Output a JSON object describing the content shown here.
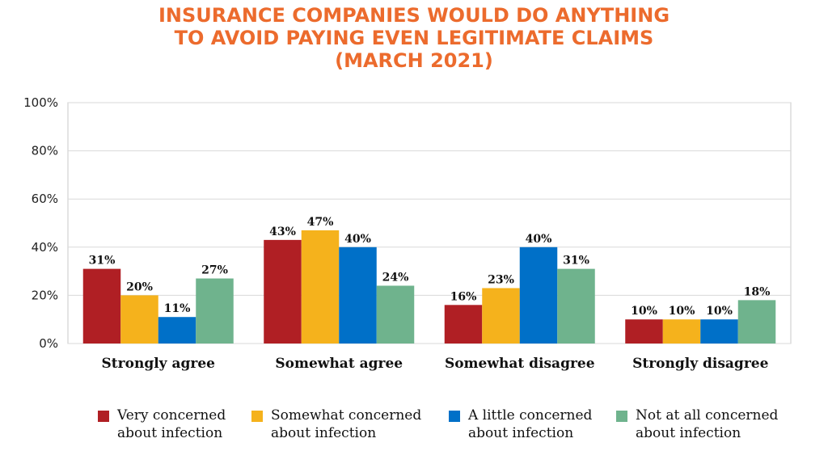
{
  "title_lines": [
    "INSURANCE COMPANIES WOULD DO ANYTHING",
    "TO AVOID PAYING EVEN LEGITIMATE CLAIMS",
    "(MARCH 2021)"
  ],
  "legend": [
    {
      "line1": "Very concerned",
      "line2": "about infection"
    },
    {
      "line1": "Somewhat concerned",
      "line2": "about infection"
    },
    {
      "line1": "A little concerned",
      "line2": "about infection"
    },
    {
      "line1": "Not at all concerned",
      "line2": "about infection"
    }
  ],
  "chart_data": {
    "type": "bar",
    "title": "INSURANCE COMPANIES WOULD DO ANYTHING TO AVOID PAYING EVEN LEGITIMATE CLAIMS (MARCH 2021)",
    "categories": [
      "Strongly agree",
      "Somewhat agree",
      "Somewhat disagree",
      "Strongly disagree"
    ],
    "series": [
      {
        "name": "Very concerned about infection",
        "color": "#b01f24",
        "values": [
          31,
          43,
          16,
          10
        ]
      },
      {
        "name": "Somewhat concerned about infection",
        "color": "#f5b21c",
        "values": [
          20,
          47,
          23,
          10
        ]
      },
      {
        "name": "A little concerned about infection",
        "color": "#0070c8",
        "values": [
          11,
          40,
          40,
          10
        ]
      },
      {
        "name": "Not at all concerned about infection",
        "color": "#6fb38d",
        "values": [
          27,
          24,
          31,
          18
        ]
      }
    ],
    "data_labels": [
      [
        "31%",
        "43%",
        "16%",
        "10%"
      ],
      [
        "20%",
        "47%",
        "23%",
        "10%"
      ],
      [
        "11%",
        "40%",
        "40%",
        "10%"
      ],
      [
        "27%",
        "24%",
        "31%",
        "18%"
      ]
    ],
    "ylim": [
      0,
      100
    ],
    "yticks": [
      0,
      20,
      40,
      60,
      80,
      100
    ],
    "ytick_labels": [
      "0%",
      "20%",
      "40%",
      "60%",
      "80%",
      "100%"
    ],
    "xlabel": "",
    "ylabel": "",
    "grid": true,
    "legend_position": "bottom"
  }
}
